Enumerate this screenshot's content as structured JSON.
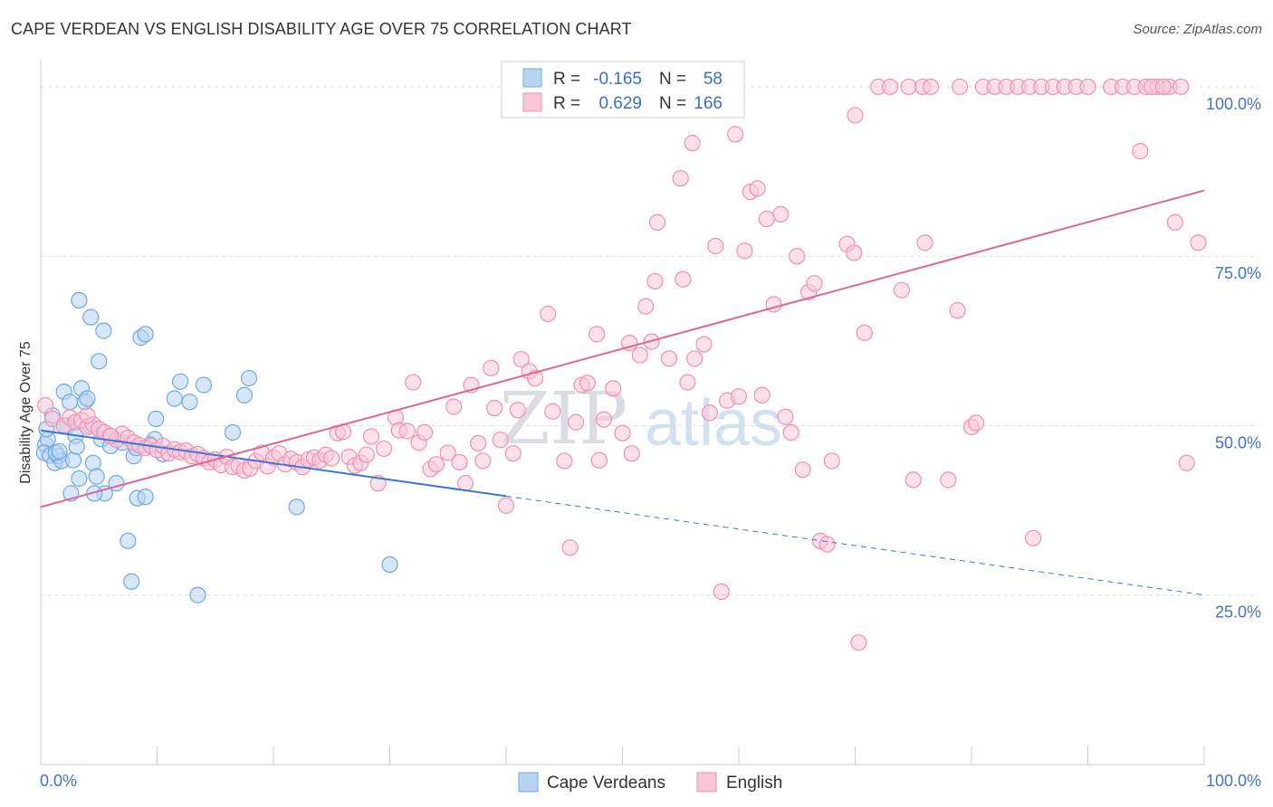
{
  "title": "CAPE VERDEAN VS ENGLISH DISABILITY AGE OVER 75 CORRELATION CHART",
  "source": "Source: ZipAtlas.com",
  "watermark": {
    "zip": "ZIP",
    "atlas": "atlas"
  },
  "legend": {
    "rows": [
      {
        "r_label": "R =",
        "r_value": "-0.165",
        "n_label": "N =",
        "n_value": "58"
      },
      {
        "r_label": "R =",
        "r_value": "0.629",
        "n_label": "N =",
        "n_value": "166"
      }
    ]
  },
  "chart_data": {
    "type": "scatter",
    "title": "CAPE VERDEAN VS ENGLISH DISABILITY AGE OVER 75 CORRELATION CHART",
    "xlabel": "",
    "ylabel": "Disability Age Over 75",
    "xlim": [
      0,
      100
    ],
    "ylim": [
      0,
      104
    ],
    "x_tick_labels": [
      "0.0%",
      "100.0%"
    ],
    "y_ticks": [
      25,
      50,
      75,
      100
    ],
    "y_tick_labels": [
      "25.0%",
      "50.0%",
      "75.0%",
      "100.0%"
    ],
    "grid": true,
    "legend_position": "top-center",
    "series": [
      {
        "name": "Cape Verdeans",
        "color": "#6fa8e0",
        "fill": "#b8d4f2",
        "line_color": "#3b78d8",
        "r": -0.165,
        "n": 58,
        "trend": {
          "x0": 0,
          "y0": 49.3,
          "x1": 40,
          "y1": 39.6,
          "x_dash_end": 100,
          "y_dash_end": 25.0
        },
        "points": [
          [
            0.4,
            47.2
          ],
          [
            0.6,
            48.0
          ],
          [
            0.3,
            46.0
          ],
          [
            0.8,
            45.6
          ],
          [
            1.0,
            51.5
          ],
          [
            0.5,
            49.5
          ],
          [
            1.2,
            44.5
          ],
          [
            1.5,
            45.5
          ],
          [
            1.8,
            44.8
          ],
          [
            2.0,
            55.0
          ],
          [
            2.3,
            50.0
          ],
          [
            2.5,
            53.5
          ],
          [
            1.3,
            46.0
          ],
          [
            1.6,
            46.2
          ],
          [
            2.6,
            40.0
          ],
          [
            3.0,
            48.5
          ],
          [
            2.8,
            44.9
          ],
          [
            3.1,
            46.9
          ],
          [
            3.3,
            42.2
          ],
          [
            3.5,
            55.5
          ],
          [
            3.8,
            53.5
          ],
          [
            4.0,
            54.0
          ],
          [
            4.2,
            50.0
          ],
          [
            4.5,
            44.5
          ],
          [
            4.3,
            66.0
          ],
          [
            3.3,
            68.5
          ],
          [
            5.0,
            59.5
          ],
          [
            5.4,
            64.0
          ],
          [
            4.8,
            42.5
          ],
          [
            5.5,
            40.0
          ],
          [
            4.6,
            40.0
          ],
          [
            6.5,
            41.5
          ],
          [
            5.2,
            48.0
          ],
          [
            7.5,
            33.0
          ],
          [
            7.8,
            27.0
          ],
          [
            8.0,
            45.5
          ],
          [
            8.3,
            39.3
          ],
          [
            8.6,
            63.0
          ],
          [
            9.0,
            39.5
          ],
          [
            9.0,
            63.5
          ],
          [
            9.8,
            48.0
          ],
          [
            9.9,
            51.0
          ],
          [
            10.5,
            45.8
          ],
          [
            11.5,
            54.0
          ],
          [
            12.0,
            56.5
          ],
          [
            12.8,
            53.5
          ],
          [
            13.5,
            25.0
          ],
          [
            14.0,
            56.0
          ],
          [
            16.5,
            49.0
          ],
          [
            17.5,
            54.5
          ],
          [
            17.9,
            57.0
          ],
          [
            22.0,
            38.0
          ],
          [
            30.0,
            29.5
          ],
          [
            6.0,
            47.0
          ],
          [
            7.0,
            47.5
          ],
          [
            8.2,
            46.7
          ],
          [
            9.4,
            47.2
          ],
          [
            2.0,
            50.0
          ]
        ]
      },
      {
        "name": "English",
        "color": "#f08fb0",
        "fill": "#f9c6d8",
        "line_color": "#e06594",
        "r": 0.629,
        "n": 166,
        "trend": {
          "x0": 0,
          "y0": 38.0,
          "x1": 100,
          "y1": 84.7
        },
        "points": [
          [
            0.4,
            53.0
          ],
          [
            1.0,
            51.0
          ],
          [
            2.0,
            50.0
          ],
          [
            2.5,
            51.2
          ],
          [
            3.0,
            50.5
          ],
          [
            3.5,
            50.8
          ],
          [
            4.0,
            49.8
          ],
          [
            4.5,
            50.2
          ],
          [
            5.0,
            49.5
          ],
          [
            5.5,
            49.0
          ],
          [
            6.0,
            48.5
          ],
          [
            6.5,
            47.9
          ],
          [
            7.0,
            48.8
          ],
          [
            7.5,
            48.2
          ],
          [
            8.0,
            47.5
          ],
          [
            8.5,
            47.1
          ],
          [
            9.0,
            46.7
          ],
          [
            9.5,
            47.0
          ],
          [
            10.0,
            46.4
          ],
          [
            10.5,
            47.0
          ],
          [
            11.0,
            45.9
          ],
          [
            11.5,
            46.5
          ],
          [
            12.0,
            46.1
          ],
          [
            12.5,
            46.3
          ],
          [
            13.0,
            45.5
          ],
          [
            13.5,
            45.8
          ],
          [
            14.0,
            45.2
          ],
          [
            14.5,
            44.6
          ],
          [
            15.0,
            45.0
          ],
          [
            15.5,
            44.2
          ],
          [
            16.0,
            45.4
          ],
          [
            16.5,
            43.9
          ],
          [
            17.0,
            44.1
          ],
          [
            17.5,
            43.4
          ],
          [
            18.0,
            43.7
          ],
          [
            18.5,
            44.8
          ],
          [
            19.0,
            46.0
          ],
          [
            19.5,
            44.0
          ],
          [
            20.0,
            45.3
          ],
          [
            20.5,
            45.9
          ],
          [
            21.0,
            44.3
          ],
          [
            21.5,
            45.1
          ],
          [
            22.0,
            44.6
          ],
          [
            22.5,
            43.9
          ],
          [
            23.0,
            45.0
          ],
          [
            23.5,
            45.3
          ],
          [
            24.0,
            44.9
          ],
          [
            24.5,
            45.7
          ],
          [
            25.0,
            45.2
          ],
          [
            25.5,
            48.9
          ],
          [
            26.0,
            49.1
          ],
          [
            26.5,
            45.4
          ],
          [
            27.0,
            44.1
          ],
          [
            27.5,
            44.5
          ],
          [
            28.0,
            45.7
          ],
          [
            28.4,
            48.4
          ],
          [
            29.0,
            41.5
          ],
          [
            29.5,
            46.6
          ],
          [
            30.5,
            51.2
          ],
          [
            30.8,
            49.3
          ],
          [
            31.5,
            49.2
          ],
          [
            32.0,
            56.4
          ],
          [
            32.5,
            47.5
          ],
          [
            33.0,
            49.0
          ],
          [
            33.5,
            43.6
          ],
          [
            34.0,
            44.3
          ],
          [
            35.0,
            46.0
          ],
          [
            35.5,
            52.8
          ],
          [
            36.0,
            44.6
          ],
          [
            36.5,
            41.5
          ],
          [
            37.0,
            56.0
          ],
          [
            37.6,
            47.4
          ],
          [
            38.0,
            44.8
          ],
          [
            38.7,
            58.5
          ],
          [
            39.0,
            52.6
          ],
          [
            39.5,
            47.9
          ],
          [
            40.0,
            38.2
          ],
          [
            40.6,
            45.9
          ],
          [
            41.0,
            52.3
          ],
          [
            41.3,
            59.8
          ],
          [
            42.0,
            58.0
          ],
          [
            42.5,
            57.0
          ],
          [
            43.6,
            66.5
          ],
          [
            44.0,
            52.1
          ],
          [
            45.0,
            44.8
          ],
          [
            45.5,
            32.0
          ],
          [
            46.0,
            50.5
          ],
          [
            46.5,
            56.0
          ],
          [
            47.0,
            56.3
          ],
          [
            47.8,
            63.5
          ],
          [
            48.0,
            44.9
          ],
          [
            48.4,
            50.9
          ],
          [
            49.2,
            55.5
          ],
          [
            50.0,
            48.9
          ],
          [
            50.6,
            62.2
          ],
          [
            50.8,
            45.9
          ],
          [
            51.5,
            60.4
          ],
          [
            52.0,
            67.6
          ],
          [
            52.5,
            62.4
          ],
          [
            52.8,
            71.3
          ],
          [
            53.0,
            80.0
          ],
          [
            54.0,
            59.9
          ],
          [
            55.0,
            86.5
          ],
          [
            55.2,
            71.6
          ],
          [
            55.6,
            56.4
          ],
          [
            56.0,
            91.7
          ],
          [
            56.2,
            59.9
          ],
          [
            57.0,
            62.0
          ],
          [
            57.5,
            51.9
          ],
          [
            58.0,
            76.5
          ],
          [
            58.5,
            25.5
          ],
          [
            59.0,
            53.7
          ],
          [
            59.7,
            93.0
          ],
          [
            60.0,
            54.3
          ],
          [
            60.5,
            75.8
          ],
          [
            61.0,
            84.5
          ],
          [
            61.6,
            85.0
          ],
          [
            62.0,
            54.5
          ],
          [
            62.4,
            80.5
          ],
          [
            63.0,
            67.9
          ],
          [
            63.6,
            81.2
          ],
          [
            64.0,
            51.3
          ],
          [
            64.5,
            49.0
          ],
          [
            65.0,
            75.0
          ],
          [
            65.5,
            43.5
          ],
          [
            66.0,
            69.7
          ],
          [
            66.5,
            71.0
          ],
          [
            67.0,
            33.0
          ],
          [
            67.6,
            32.5
          ],
          [
            68.0,
            44.8
          ],
          [
            69.3,
            76.8
          ],
          [
            69.9,
            75.5
          ],
          [
            70.0,
            95.8
          ],
          [
            70.3,
            18.0
          ],
          [
            70.8,
            63.7
          ],
          [
            72.0,
            100
          ],
          [
            73.0,
            100
          ],
          [
            74.0,
            70.0
          ],
          [
            74.6,
            100
          ],
          [
            75.0,
            42.0
          ],
          [
            75.8,
            100
          ],
          [
            76.0,
            77.0
          ],
          [
            76.5,
            100
          ],
          [
            78.0,
            42.0
          ],
          [
            78.8,
            67.0
          ],
          [
            79.0,
            100
          ],
          [
            80.0,
            49.8
          ],
          [
            80.4,
            50.4
          ],
          [
            81.0,
            100
          ],
          [
            82.0,
            100
          ],
          [
            83.0,
            100
          ],
          [
            84.0,
            100
          ],
          [
            85.0,
            100
          ],
          [
            86.0,
            100
          ],
          [
            87.0,
            100
          ],
          [
            88.0,
            100
          ],
          [
            89.0,
            100
          ],
          [
            90.0,
            100
          ],
          [
            92.0,
            100
          ],
          [
            93.0,
            100
          ],
          [
            94.0,
            100
          ],
          [
            95.0,
            100
          ],
          [
            96.0,
            100
          ],
          [
            97.0,
            100
          ],
          [
            98.0,
            100
          ],
          [
            98.5,
            44.5
          ],
          [
            85.3,
            33.4
          ],
          [
            97.5,
            80.0
          ],
          [
            99.5,
            77.0
          ],
          [
            94.5,
            90.5
          ],
          [
            95.5,
            100
          ],
          [
            96.5,
            100
          ],
          [
            4.0,
            51.5
          ],
          [
            6.0,
            48.5
          ]
        ]
      }
    ]
  }
}
